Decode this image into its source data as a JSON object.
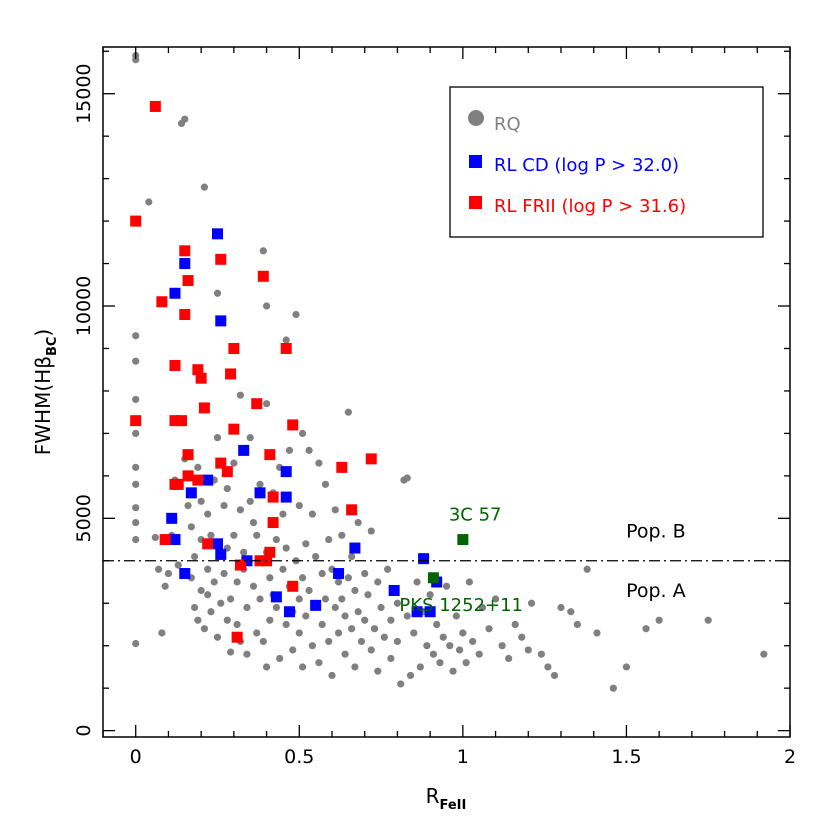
{
  "chart_data": {
    "type": "scatter",
    "title": "",
    "xlabel": {
      "main": "R",
      "sub": "FeII"
    },
    "ylabel": {
      "main": "FWHM(Hβ",
      "sub": "BC",
      "close": ")"
    },
    "xlim": [
      -0.1,
      2.0
    ],
    "ylim": [
      -150,
      16100
    ],
    "x_ticks": [
      0,
      0.5,
      1,
      1.5,
      2
    ],
    "x_tick_labels": [
      "0",
      "0.5",
      "1",
      "1.5",
      "2"
    ],
    "y_ticks": [
      0,
      5000,
      10000,
      15000
    ],
    "y_tick_labels": [
      "0",
      "5000",
      "10000",
      "15000"
    ],
    "grid": false,
    "legend_position": "top-right",
    "colors": {
      "rq": "#808080",
      "rl_cd": "#0000ff",
      "rl_frii": "#ff0000",
      "special": "#006400",
      "axis": "#000000"
    },
    "reference_line": {
      "y": 4000,
      "style": "dash-dot"
    },
    "population_labels": [
      {
        "text": "Pop. B",
        "x": 1.59,
        "y": 4550
      },
      {
        "text": "Pop. A",
        "x": 1.59,
        "y": 3150
      }
    ],
    "series": [
      {
        "name": "RQ",
        "marker": "circle",
        "color": "#808080",
        "points": [
          [
            0.0,
            15900
          ],
          [
            0.0,
            15800
          ],
          [
            0.0,
            9300
          ],
          [
            0.0,
            8700
          ],
          [
            0.0,
            7800
          ],
          [
            0.0,
            7000
          ],
          [
            0.0,
            6200
          ],
          [
            0.0,
            5800
          ],
          [
            0.0,
            5250
          ],
          [
            0.0,
            4900
          ],
          [
            0.0,
            4500
          ],
          [
            0.0,
            2050
          ],
          [
            0.04,
            12450
          ],
          [
            0.06,
            4550
          ],
          [
            0.07,
            3800
          ],
          [
            0.08,
            2300
          ],
          [
            0.09,
            3400
          ],
          [
            0.1,
            3700
          ],
          [
            0.11,
            4600
          ],
          [
            0.12,
            7300
          ],
          [
            0.12,
            5900
          ],
          [
            0.13,
            3900
          ],
          [
            0.14,
            14300
          ],
          [
            0.15,
            14400
          ],
          [
            0.15,
            6400
          ],
          [
            0.16,
            5300
          ],
          [
            0.17,
            4800
          ],
          [
            0.17,
            3600
          ],
          [
            0.18,
            2900
          ],
          [
            0.18,
            4100
          ],
          [
            0.19,
            6200
          ],
          [
            0.19,
            2600
          ],
          [
            0.2,
            3300
          ],
          [
            0.2,
            4500
          ],
          [
            0.2,
            5400
          ],
          [
            0.21,
            12800
          ],
          [
            0.21,
            2400
          ],
          [
            0.22,
            3800
          ],
          [
            0.22,
            5100
          ],
          [
            0.22,
            3200
          ],
          [
            0.23,
            2800
          ],
          [
            0.23,
            4600
          ],
          [
            0.24,
            3500
          ],
          [
            0.24,
            5900
          ],
          [
            0.25,
            10300
          ],
          [
            0.25,
            6900
          ],
          [
            0.25,
            2200
          ],
          [
            0.26,
            3000
          ],
          [
            0.26,
            4100
          ],
          [
            0.27,
            5300
          ],
          [
            0.27,
            3700
          ],
          [
            0.28,
            2600
          ],
          [
            0.28,
            5700
          ],
          [
            0.28,
            4300
          ],
          [
            0.29,
            1850
          ],
          [
            0.29,
            3100
          ],
          [
            0.3,
            6300
          ],
          [
            0.3,
            4600
          ],
          [
            0.31,
            2500
          ],
          [
            0.31,
            3500
          ],
          [
            0.32,
            7900
          ],
          [
            0.32,
            5200
          ],
          [
            0.32,
            2100
          ],
          [
            0.33,
            4200
          ],
          [
            0.33,
            3800
          ],
          [
            0.34,
            1800
          ],
          [
            0.34,
            2900
          ],
          [
            0.35,
            6900
          ],
          [
            0.35,
            5400
          ],
          [
            0.36,
            4900
          ],
          [
            0.36,
            3400
          ],
          [
            0.37,
            2300
          ],
          [
            0.37,
            4600
          ],
          [
            0.38,
            5800
          ],
          [
            0.38,
            3100
          ],
          [
            0.39,
            2100
          ],
          [
            0.39,
            11300
          ],
          [
            0.4,
            10000
          ],
          [
            0.4,
            7700
          ],
          [
            0.4,
            4200
          ],
          [
            0.4,
            1500
          ],
          [
            0.41,
            3600
          ],
          [
            0.41,
            2600
          ],
          [
            0.42,
            5600
          ],
          [
            0.42,
            3200
          ],
          [
            0.43,
            4500
          ],
          [
            0.43,
            2900
          ],
          [
            0.44,
            1700
          ],
          [
            0.44,
            6200
          ],
          [
            0.45,
            3800
          ],
          [
            0.45,
            5100
          ],
          [
            0.46,
            9200
          ],
          [
            0.46,
            2500
          ],
          [
            0.46,
            4300
          ],
          [
            0.47,
            3400
          ],
          [
            0.47,
            6600
          ],
          [
            0.48,
            2800
          ],
          [
            0.48,
            1900
          ],
          [
            0.49,
            9800
          ],
          [
            0.49,
            4000
          ],
          [
            0.5,
            5300
          ],
          [
            0.5,
            3100
          ],
          [
            0.5,
            2300
          ],
          [
            0.51,
            7000
          ],
          [
            0.51,
            3600
          ],
          [
            0.51,
            1500
          ],
          [
            0.52,
            4400
          ],
          [
            0.52,
            2700
          ],
          [
            0.53,
            6600
          ],
          [
            0.53,
            3300
          ],
          [
            0.54,
            5100
          ],
          [
            0.54,
            2000
          ],
          [
            0.55,
            4100
          ],
          [
            0.55,
            3000
          ],
          [
            0.56,
            6300
          ],
          [
            0.56,
            1600
          ],
          [
            0.57,
            3700
          ],
          [
            0.57,
            2500
          ],
          [
            0.58,
            5800
          ],
          [
            0.58,
            3100
          ],
          [
            0.59,
            2100
          ],
          [
            0.59,
            4500
          ],
          [
            0.6,
            3800
          ],
          [
            0.6,
            1300
          ],
          [
            0.61,
            2900
          ],
          [
            0.61,
            5200
          ],
          [
            0.62,
            3500
          ],
          [
            0.62,
            2300
          ],
          [
            0.63,
            4600
          ],
          [
            0.63,
            3100
          ],
          [
            0.64,
            1800
          ],
          [
            0.64,
            2700
          ],
          [
            0.65,
            7500
          ],
          [
            0.65,
            3600
          ],
          [
            0.66,
            2400
          ],
          [
            0.66,
            4100
          ],
          [
            0.67,
            3300
          ],
          [
            0.67,
            1500
          ],
          [
            0.68,
            2800
          ],
          [
            0.68,
            4900
          ],
          [
            0.69,
            2100
          ],
          [
            0.7,
            3700
          ],
          [
            0.7,
            2600
          ],
          [
            0.71,
            3200
          ],
          [
            0.72,
            1900
          ],
          [
            0.72,
            4700
          ],
          [
            0.73,
            2400
          ],
          [
            0.74,
            3500
          ],
          [
            0.74,
            1400
          ],
          [
            0.75,
            2900
          ],
          [
            0.76,
            2200
          ],
          [
            0.77,
            3800
          ],
          [
            0.78,
            2600
          ],
          [
            0.78,
            1700
          ],
          [
            0.8,
            3000
          ],
          [
            0.8,
            2100
          ],
          [
            0.81,
            1100
          ],
          [
            0.82,
            5900
          ],
          [
            0.83,
            5950
          ],
          [
            0.83,
            2700
          ],
          [
            0.84,
            1300
          ],
          [
            0.85,
            2300
          ],
          [
            0.86,
            3500
          ],
          [
            0.87,
            1500
          ],
          [
            0.88,
            2800
          ],
          [
            0.89,
            2000
          ],
          [
            0.9,
            3200
          ],
          [
            0.91,
            1800
          ],
          [
            0.92,
            2500
          ],
          [
            0.93,
            1600
          ],
          [
            0.94,
            2200
          ],
          [
            0.95,
            3400
          ],
          [
            0.96,
            2000
          ],
          [
            0.97,
            1400
          ],
          [
            0.98,
            2700
          ],
          [
            0.99,
            1900
          ],
          [
            1.0,
            2300
          ],
          [
            1.01,
            1600
          ],
          [
            1.02,
            3500
          ],
          [
            1.03,
            2100
          ],
          [
            1.05,
            1800
          ],
          [
            1.06,
            2900
          ],
          [
            1.08,
            2400
          ],
          [
            1.1,
            3100
          ],
          [
            1.12,
            2000
          ],
          [
            1.14,
            1700
          ],
          [
            1.16,
            2500
          ],
          [
            1.18,
            2200
          ],
          [
            1.2,
            1900
          ],
          [
            1.21,
            3000
          ],
          [
            1.24,
            1800
          ],
          [
            1.26,
            1500
          ],
          [
            1.28,
            1300
          ],
          [
            1.3,
            2900
          ],
          [
            1.33,
            2800
          ],
          [
            1.35,
            2500
          ],
          [
            1.38,
            3800
          ],
          [
            1.41,
            2300
          ],
          [
            1.46,
            1000
          ],
          [
            1.5,
            1500
          ],
          [
            1.56,
            2400
          ],
          [
            1.6,
            2600
          ],
          [
            1.75,
            2600
          ],
          [
            1.92,
            1800
          ]
        ]
      },
      {
        "name": "RL CD (log P > 32.0)",
        "marker": "square",
        "color": "#0000ff",
        "points": [
          [
            0.12,
            10300
          ],
          [
            0.15,
            11000
          ],
          [
            0.25,
            11700
          ],
          [
            0.26,
            9650
          ],
          [
            0.22,
            5900
          ],
          [
            0.33,
            6600
          ],
          [
            0.17,
            5600
          ],
          [
            0.12,
            4500
          ],
          [
            0.11,
            5000
          ],
          [
            0.15,
            3700
          ],
          [
            0.26,
            4150
          ],
          [
            0.25,
            4400
          ],
          [
            0.34,
            4000
          ],
          [
            0.38,
            5600
          ],
          [
            0.46,
            6100
          ],
          [
            0.46,
            5500
          ],
          [
            0.43,
            3150
          ],
          [
            0.47,
            2800
          ],
          [
            0.55,
            2950
          ],
          [
            0.62,
            3700
          ],
          [
            0.67,
            4300
          ],
          [
            0.79,
            3300
          ],
          [
            0.88,
            4050
          ],
          [
            0.86,
            2800
          ],
          [
            0.9,
            2800
          ],
          [
            0.92,
            3500
          ]
        ]
      },
      {
        "name": "RL FRII (log P > 31.6)",
        "marker": "square",
        "color": "#ff0000",
        "points": [
          [
            0.06,
            14700
          ],
          [
            0.0,
            12000
          ],
          [
            0.0,
            7300
          ],
          [
            0.08,
            10100
          ],
          [
            0.15,
            11300
          ],
          [
            0.16,
            10600
          ],
          [
            0.26,
            11100
          ],
          [
            0.15,
            9800
          ],
          [
            0.12,
            8600
          ],
          [
            0.19,
            8500
          ],
          [
            0.2,
            8300
          ],
          [
            0.21,
            7600
          ],
          [
            0.12,
            7300
          ],
          [
            0.14,
            7300
          ],
          [
            0.16,
            6500
          ],
          [
            0.16,
            6000
          ],
          [
            0.19,
            5900
          ],
          [
            0.13,
            5800
          ],
          [
            0.12,
            5800
          ],
          [
            0.09,
            4500
          ],
          [
            0.22,
            4400
          ],
          [
            0.26,
            6300
          ],
          [
            0.28,
            6100
          ],
          [
            0.3,
            7100
          ],
          [
            0.3,
            9000
          ],
          [
            0.29,
            8400
          ],
          [
            0.37,
            7700
          ],
          [
            0.39,
            10700
          ],
          [
            0.41,
            6500
          ],
          [
            0.42,
            5500
          ],
          [
            0.41,
            4200
          ],
          [
            0.4,
            4000
          ],
          [
            0.38,
            4000
          ],
          [
            0.32,
            3900
          ],
          [
            0.31,
            2200
          ],
          [
            0.42,
            4900
          ],
          [
            0.46,
            9000
          ],
          [
            0.48,
            3400
          ],
          [
            0.48,
            7200
          ],
          [
            0.63,
            6200
          ],
          [
            0.66,
            5200
          ],
          [
            0.72,
            6400
          ]
        ]
      }
    ],
    "special_points": [
      {
        "label": "3C 57",
        "x": 1.0,
        "y": 4500
      },
      {
        "label": "PKS 1252+11",
        "x": 0.91,
        "y": 3600
      }
    ]
  }
}
